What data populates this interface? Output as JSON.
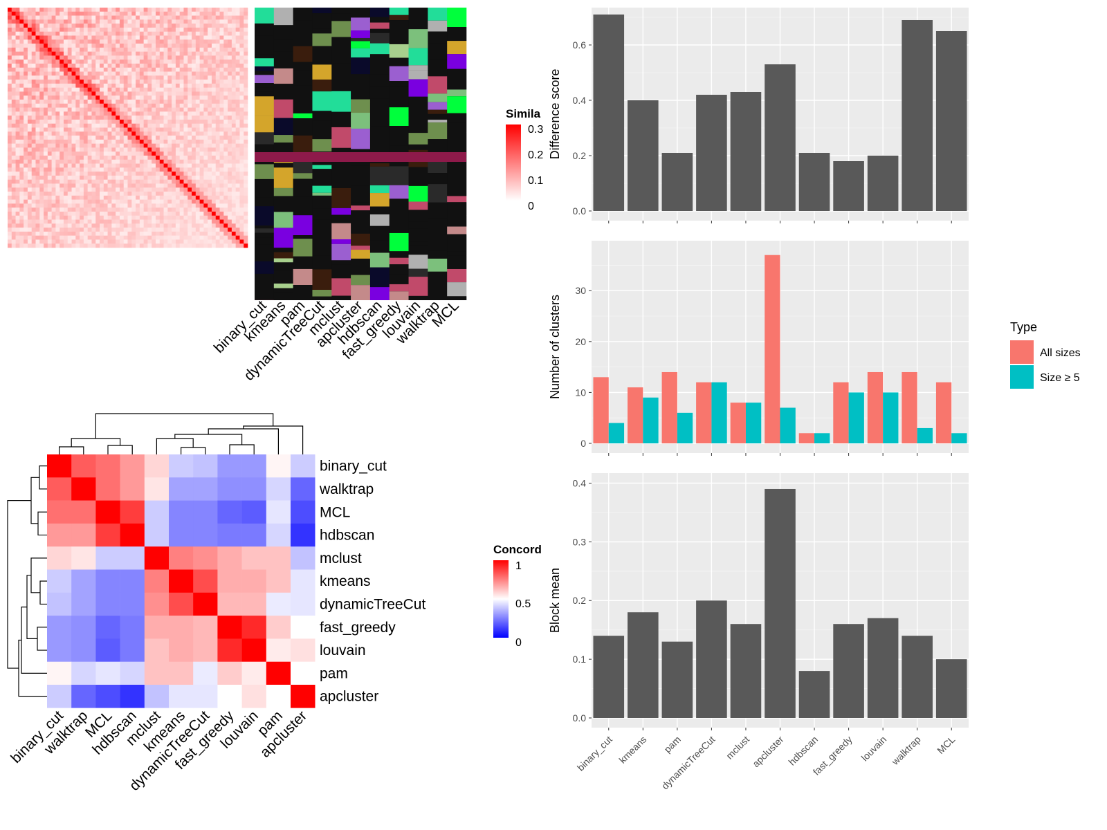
{
  "methods": [
    "binary_cut",
    "kmeans",
    "pam",
    "dynamicTreeCut",
    "mclust",
    "apcluster",
    "hdbscan",
    "fast_greedy",
    "louvain",
    "walktrap",
    "MCL"
  ],
  "similarity_legend": {
    "title": "Simila",
    "ticks": [
      "0.3",
      "0.2",
      "0.1",
      "0"
    ]
  },
  "concordance_legend": {
    "title": "Concord",
    "ticks": [
      "1",
      "0.5",
      "0"
    ]
  },
  "concordance_order": [
    "binary_cut",
    "walktrap",
    "MCL",
    "hdbscan",
    "mclust",
    "kmeans",
    "dynamicTreeCut",
    "fast_greedy",
    "louvain",
    "pam",
    "apcluster"
  ],
  "concordance_matrix": [
    [
      1.0,
      0.82,
      0.78,
      0.7,
      0.58,
      0.4,
      0.38,
      0.3,
      0.3,
      0.52,
      0.4
    ],
    [
      0.82,
      1.0,
      0.78,
      0.7,
      0.55,
      0.32,
      0.32,
      0.28,
      0.28,
      0.42,
      0.2
    ],
    [
      0.78,
      0.78,
      1.0,
      0.88,
      0.4,
      0.26,
      0.26,
      0.2,
      0.18,
      0.45,
      0.15
    ],
    [
      0.7,
      0.7,
      0.88,
      1.0,
      0.4,
      0.26,
      0.26,
      0.24,
      0.24,
      0.42,
      0.1
    ],
    [
      0.58,
      0.55,
      0.4,
      0.4,
      1.0,
      0.75,
      0.72,
      0.66,
      0.62,
      0.62,
      0.38
    ],
    [
      0.4,
      0.32,
      0.26,
      0.26,
      0.75,
      1.0,
      0.85,
      0.66,
      0.66,
      0.62,
      0.45
    ],
    [
      0.38,
      0.32,
      0.26,
      0.26,
      0.72,
      0.85,
      1.0,
      0.64,
      0.64,
      0.46,
      0.45
    ],
    [
      0.3,
      0.28,
      0.2,
      0.24,
      0.66,
      0.66,
      0.64,
      1.0,
      0.92,
      0.6,
      0.5
    ],
    [
      0.3,
      0.28,
      0.18,
      0.24,
      0.62,
      0.66,
      0.64,
      0.92,
      1.0,
      0.54,
      0.56
    ],
    [
      0.52,
      0.42,
      0.45,
      0.42,
      0.62,
      0.62,
      0.46,
      0.6,
      0.54,
      1.0,
      0.5
    ],
    [
      0.4,
      0.2,
      0.15,
      0.1,
      0.38,
      0.45,
      0.45,
      0.5,
      0.56,
      0.5,
      1.0
    ]
  ],
  "legend_type": {
    "title": "Type",
    "items": [
      "All sizes",
      "Size ≥ 5"
    ]
  },
  "chart_data": [
    {
      "type": "bar",
      "categories": [
        "binary_cut",
        "kmeans",
        "pam",
        "dynamicTreeCut",
        "mclust",
        "apcluster",
        "hdbscan",
        "fast_greedy",
        "louvain",
        "walktrap",
        "MCL"
      ],
      "values": [
        0.71,
        0.4,
        0.21,
        0.42,
        0.43,
        0.53,
        0.21,
        0.18,
        0.2,
        0.69,
        0.65
      ],
      "ylabel": "Difference score",
      "ylim": [
        0,
        0.72
      ],
      "yticks": [
        0.0,
        0.2,
        0.4,
        0.6
      ],
      "ytick_labels": [
        "0.0",
        "0.2",
        "0.4",
        "0.6"
      ],
      "grid": true,
      "color": "#595959"
    },
    {
      "type": "bar",
      "categories": [
        "binary_cut",
        "kmeans",
        "pam",
        "dynamicTreeCut",
        "mclust",
        "apcluster",
        "hdbscan",
        "fast_greedy",
        "louvain",
        "walktrap",
        "MCL"
      ],
      "series": [
        {
          "name": "All sizes",
          "values": [
            13,
            11,
            14,
            12,
            8,
            37,
            2,
            12,
            14,
            14,
            12
          ],
          "color": "#F8766D"
        },
        {
          "name": "Size ≥ 5",
          "values": [
            4,
            9,
            6,
            12,
            8,
            7,
            2,
            10,
            10,
            3,
            2
          ],
          "color": "#00BFC4"
        }
      ],
      "ylabel": "Number of clusters",
      "ylim": [
        0,
        39
      ],
      "yticks": [
        0,
        10,
        20,
        30
      ],
      "ytick_labels": [
        "0",
        "10",
        "20",
        "30"
      ],
      "grid": true,
      "legend_position": "right"
    },
    {
      "type": "bar",
      "categories": [
        "binary_cut",
        "kmeans",
        "pam",
        "dynamicTreeCut",
        "mclust",
        "apcluster",
        "hdbscan",
        "fast_greedy",
        "louvain",
        "walktrap",
        "MCL"
      ],
      "values": [
        0.14,
        0.18,
        0.13,
        0.2,
        0.16,
        0.39,
        0.08,
        0.16,
        0.17,
        0.14,
        0.1
      ],
      "ylabel": "Block mean",
      "ylim": [
        0,
        0.41
      ],
      "yticks": [
        0.0,
        0.1,
        0.2,
        0.3,
        0.4
      ],
      "ytick_labels": [
        "0.0",
        "0.1",
        "0.2",
        "0.3",
        "0.4"
      ],
      "grid": true,
      "color": "#595959"
    }
  ]
}
